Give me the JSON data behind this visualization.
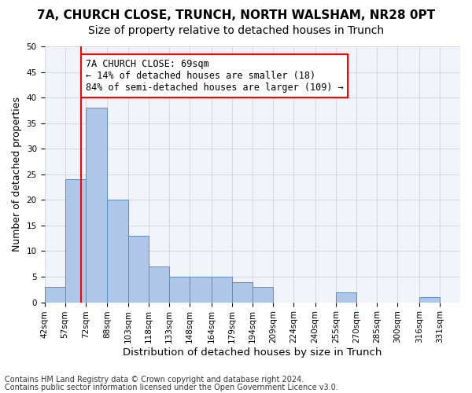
{
  "title1": "7A, CHURCH CLOSE, TRUNCH, NORTH WALSHAM, NR28 0PT",
  "title2": "Size of property relative to detached houses in Trunch",
  "xlabel": "Distribution of detached houses by size in Trunch",
  "ylabel": "Number of detached properties",
  "footnote1": "Contains HM Land Registry data © Crown copyright and database right 2024.",
  "footnote2": "Contains public sector information licensed under the Open Government Licence v3.0.",
  "annotation_title": "7A CHURCH CLOSE: 69sqm",
  "annotation_line1": "← 14% of detached houses are smaller (18)",
  "annotation_line2": "84% of semi-detached houses are larger (109) →",
  "bar_edges": [
    42,
    57,
    72,
    88,
    103,
    118,
    133,
    148,
    164,
    179,
    194,
    209,
    224,
    240,
    255,
    270,
    285,
    300,
    316,
    331,
    346
  ],
  "bar_heights": [
    3,
    24,
    38,
    20,
    13,
    7,
    5,
    5,
    5,
    4,
    3,
    0,
    0,
    0,
    2,
    0,
    0,
    0,
    1,
    0
  ],
  "bar_color": "#aec6e8",
  "bar_edgecolor": "#5a8fc0",
  "bar_linewidth": 0.7,
  "vline_x": 69,
  "vline_color": "red",
  "vline_linewidth": 1.5,
  "annotation_box_color": "red",
  "ylim": [
    0,
    50
  ],
  "yticks": [
    0,
    5,
    10,
    15,
    20,
    25,
    30,
    35,
    40,
    45,
    50
  ],
  "grid_color": "#cccccc",
  "background_color": "#f0f4fa",
  "fig_background": "#ffffff",
  "title1_fontsize": 11,
  "title2_fontsize": 10,
  "xlabel_fontsize": 9.5,
  "ylabel_fontsize": 9,
  "annotation_fontsize": 8.5,
  "tick_fontsize": 7.5,
  "footnote_fontsize": 7
}
